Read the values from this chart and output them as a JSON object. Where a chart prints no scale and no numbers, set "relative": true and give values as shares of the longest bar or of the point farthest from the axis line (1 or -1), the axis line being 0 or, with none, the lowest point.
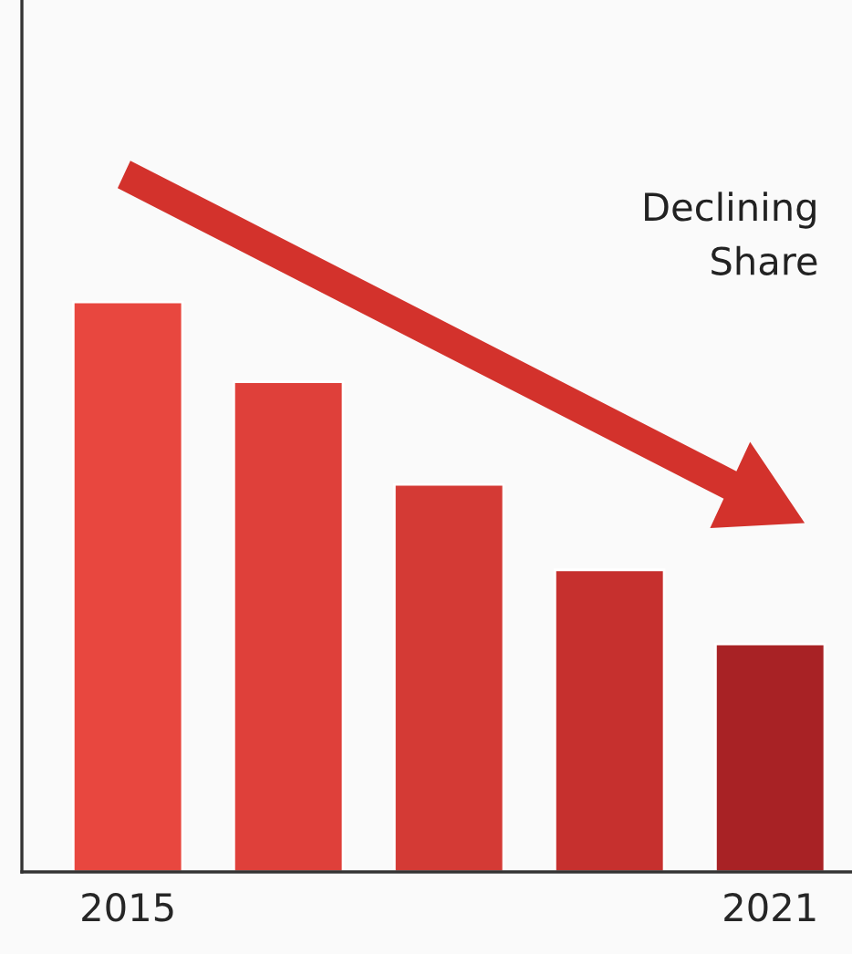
{
  "chart_data": {
    "type": "bar",
    "relative": true,
    "categories": [
      "2015",
      null,
      null,
      null,
      "2021"
    ],
    "values": [
      1,
      0.86,
      0.68,
      0.53,
      0.4
    ],
    "colors": [
      "#e8473f",
      "#df403a",
      "#d43a35",
      "#c6302e",
      "#a82225"
    ],
    "annotations": [
      "Declining\nShare"
    ],
    "grid": false,
    "legend": false
  }
}
